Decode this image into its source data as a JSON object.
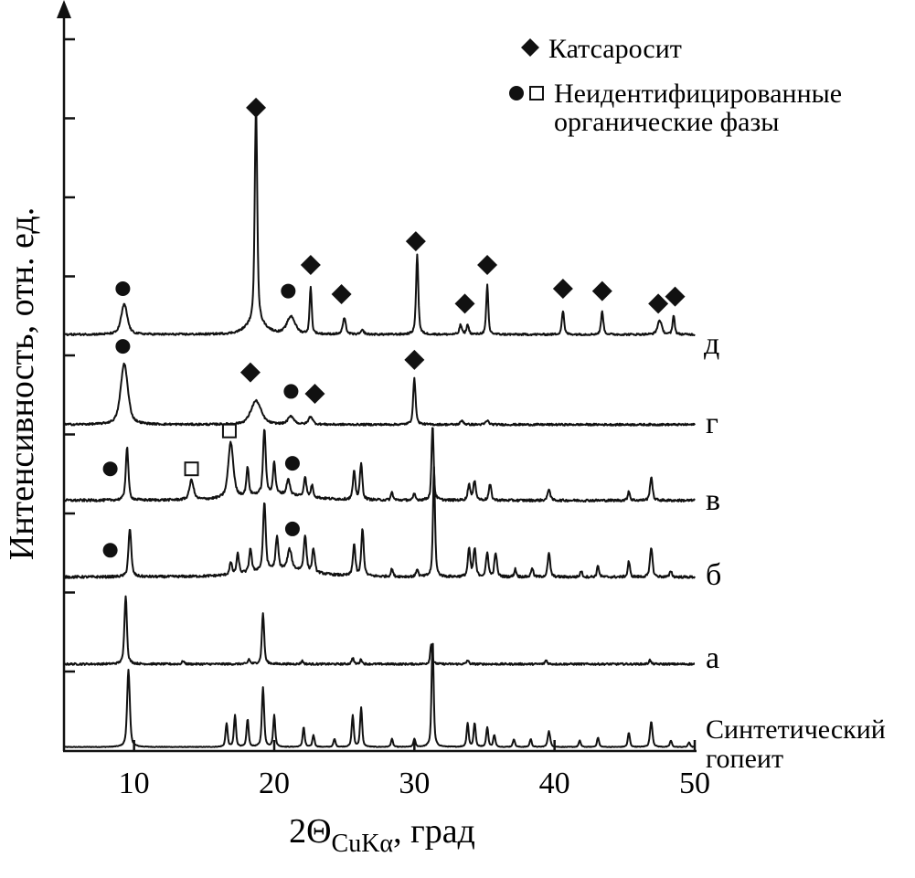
{
  "chart_data": {
    "type": "line",
    "title": "",
    "xlabel": "2Θ",
    "xlabel_sub": "CuKα",
    "xlabel_suffix": ", град",
    "ylabel": "Интенсивность, отн. ед.",
    "xlim": [
      5,
      50
    ],
    "ylim": [
      0,
      9.35
    ],
    "xticks": [
      10,
      20,
      30,
      40,
      50
    ],
    "yticks_unlabeled": [
      1,
      2,
      3,
      4,
      5,
      6,
      7,
      8,
      9
    ],
    "legend": {
      "placement": "top-right",
      "entries": [
        {
          "symbols": [
            "diamond"
          ],
          "label": "Катсаросит"
        },
        {
          "symbols": [
            "circle",
            "square"
          ],
          "label": "Неидентифицированные",
          "label2": "органические фазы"
        }
      ]
    },
    "series": [
      {
        "name": "Синтетический гопеит",
        "name_line1": "Синтетический",
        "name_line2": "гопеит",
        "baseline": 0.05,
        "noise": 0.004,
        "peaks": [
          [
            9.6,
            0.98,
            0.13
          ],
          [
            16.6,
            0.3,
            0.1
          ],
          [
            17.2,
            0.4,
            0.1
          ],
          [
            18.1,
            0.35,
            0.1
          ],
          [
            19.2,
            0.75,
            0.11
          ],
          [
            20.0,
            0.4,
            0.1
          ],
          [
            22.1,
            0.25,
            0.1
          ],
          [
            22.8,
            0.15,
            0.1
          ],
          [
            24.3,
            0.1,
            0.1
          ],
          [
            25.6,
            0.4,
            0.1
          ],
          [
            26.2,
            0.5,
            0.1
          ],
          [
            28.4,
            0.1,
            0.1
          ],
          [
            30.0,
            0.1,
            0.1
          ],
          [
            31.3,
            1.36,
            0.1
          ],
          [
            33.8,
            0.3,
            0.1
          ],
          [
            34.3,
            0.3,
            0.1
          ],
          [
            35.2,
            0.25,
            0.1
          ],
          [
            35.7,
            0.15,
            0.1
          ],
          [
            37.1,
            0.1,
            0.1
          ],
          [
            38.3,
            0.1,
            0.1
          ],
          [
            39.6,
            0.2,
            0.12
          ],
          [
            41.8,
            0.08,
            0.1
          ],
          [
            43.1,
            0.12,
            0.1
          ],
          [
            45.3,
            0.18,
            0.1
          ],
          [
            46.9,
            0.32,
            0.12
          ],
          [
            48.3,
            0.08,
            0.1
          ],
          [
            49.6,
            0.06,
            0.1
          ]
        ]
      },
      {
        "name": "а",
        "baseline": 1.1,
        "noise": 0.012,
        "peaks": [
          [
            9.4,
            0.87,
            0.12
          ],
          [
            13.5,
            0.04,
            0.1
          ],
          [
            18.2,
            0.06,
            0.1
          ],
          [
            19.2,
            0.65,
            0.11
          ],
          [
            22.0,
            0.04,
            0.1
          ],
          [
            25.6,
            0.08,
            0.1
          ],
          [
            26.2,
            0.06,
            0.1
          ],
          [
            31.2,
            0.25,
            0.1
          ],
          [
            33.8,
            0.05,
            0.1
          ],
          [
            39.4,
            0.05,
            0.1
          ],
          [
            46.8,
            0.05,
            0.1
          ]
        ]
      },
      {
        "name": "б",
        "baseline": 2.2,
        "noise": 0.015,
        "peaks": [
          [
            9.7,
            0.6,
            0.14
          ],
          [
            16.9,
            0.15,
            0.12
          ],
          [
            17.4,
            0.25,
            0.12
          ],
          [
            18.3,
            0.3,
            0.12
          ],
          [
            19.3,
            0.85,
            0.13
          ],
          [
            20.2,
            0.4,
            0.13
          ],
          [
            21.1,
            0.25,
            0.2
          ],
          [
            22.2,
            0.45,
            0.13
          ],
          [
            22.8,
            0.3,
            0.12
          ],
          [
            25.7,
            0.4,
            0.12
          ],
          [
            26.3,
            0.6,
            0.12
          ],
          [
            28.4,
            0.1,
            0.1
          ],
          [
            30.2,
            0.1,
            0.1
          ],
          [
            31.4,
            1.39,
            0.1
          ],
          [
            33.9,
            0.35,
            0.12
          ],
          [
            34.3,
            0.35,
            0.12
          ],
          [
            35.2,
            0.3,
            0.12
          ],
          [
            35.8,
            0.3,
            0.12
          ],
          [
            37.2,
            0.1,
            0.1
          ],
          [
            38.4,
            0.12,
            0.1
          ],
          [
            39.6,
            0.3,
            0.12
          ],
          [
            41.9,
            0.08,
            0.1
          ],
          [
            43.1,
            0.15,
            0.1
          ],
          [
            45.3,
            0.2,
            0.1
          ],
          [
            46.9,
            0.38,
            0.12
          ],
          [
            48.3,
            0.08,
            0.1
          ],
          [
            20.5,
            0.1,
            3.0
          ]
        ]
      },
      {
        "name": "в",
        "baseline": 3.17,
        "noise": 0.015,
        "peaks": [
          [
            9.5,
            0.67,
            0.13
          ],
          [
            14.1,
            0.25,
            0.2
          ],
          [
            16.9,
            0.7,
            0.25
          ],
          [
            18.1,
            0.35,
            0.12
          ],
          [
            19.3,
            0.82,
            0.13
          ],
          [
            20.0,
            0.4,
            0.12
          ],
          [
            21.0,
            0.2,
            0.15
          ],
          [
            22.2,
            0.25,
            0.12
          ],
          [
            22.7,
            0.15,
            0.12
          ],
          [
            25.7,
            0.35,
            0.12
          ],
          [
            26.2,
            0.45,
            0.12
          ],
          [
            28.4,
            0.1,
            0.1
          ],
          [
            30.0,
            0.08,
            0.1
          ],
          [
            31.3,
            0.96,
            0.1
          ],
          [
            33.9,
            0.2,
            0.12
          ],
          [
            34.3,
            0.25,
            0.12
          ],
          [
            35.4,
            0.2,
            0.12
          ],
          [
            39.6,
            0.15,
            0.12
          ],
          [
            45.3,
            0.12,
            0.1
          ],
          [
            46.9,
            0.3,
            0.12
          ],
          [
            20,
            0.08,
            3.0
          ]
        ]
      },
      {
        "name": "г",
        "baseline": 4.13,
        "noise": 0.012,
        "peaks": [
          [
            9.3,
            0.77,
            0.35
          ],
          [
            18.7,
            0.3,
            0.5
          ],
          [
            21.2,
            0.1,
            0.3
          ],
          [
            22.6,
            0.1,
            0.2
          ],
          [
            30.0,
            0.58,
            0.12
          ],
          [
            33.4,
            0.05,
            0.15
          ],
          [
            35.2,
            0.05,
            0.15
          ]
        ]
      },
      {
        "name": "д",
        "baseline": 5.27,
        "noise": 0.012,
        "peaks": [
          [
            9.3,
            0.38,
            0.3
          ],
          [
            18.7,
            2.75,
            0.12
          ],
          [
            18.7,
            0.15,
            0.9
          ],
          [
            21.2,
            0.22,
            0.4
          ],
          [
            22.6,
            0.6,
            0.1
          ],
          [
            25.0,
            0.2,
            0.15
          ],
          [
            26.3,
            0.05,
            0.15
          ],
          [
            30.2,
            1.02,
            0.11
          ],
          [
            33.3,
            0.12,
            0.12
          ],
          [
            33.8,
            0.12,
            0.12
          ],
          [
            35.2,
            0.62,
            0.1
          ],
          [
            40.6,
            0.3,
            0.11
          ],
          [
            43.4,
            0.3,
            0.11
          ],
          [
            47.5,
            0.18,
            0.2
          ],
          [
            48.5,
            0.25,
            0.1
          ]
        ]
      }
    ],
    "markers": [
      {
        "series": "д",
        "type": "circle",
        "x": 9.2,
        "y": 5.85
      },
      {
        "series": "д",
        "type": "diamond",
        "x": 18.7,
        "y": 8.14
      },
      {
        "series": "д",
        "type": "circle",
        "x": 21.0,
        "y": 5.82
      },
      {
        "series": "д",
        "type": "diamond",
        "x": 22.6,
        "y": 6.15
      },
      {
        "series": "д",
        "type": "diamond",
        "x": 24.8,
        "y": 5.78
      },
      {
        "series": "д",
        "type": "diamond",
        "x": 30.1,
        "y": 6.45
      },
      {
        "series": "д",
        "type": "diamond",
        "x": 33.6,
        "y": 5.66
      },
      {
        "series": "д",
        "type": "diamond",
        "x": 35.2,
        "y": 6.15
      },
      {
        "series": "д",
        "type": "diamond",
        "x": 40.6,
        "y": 5.85
      },
      {
        "series": "д",
        "type": "diamond",
        "x": 43.4,
        "y": 5.82
      },
      {
        "series": "д",
        "type": "diamond",
        "x": 47.4,
        "y": 5.66
      },
      {
        "series": "д",
        "type": "diamond",
        "x": 48.6,
        "y": 5.75
      },
      {
        "series": "г",
        "type": "circle",
        "x": 9.2,
        "y": 5.12
      },
      {
        "series": "г",
        "type": "diamond",
        "x": 18.3,
        "y": 4.79
      },
      {
        "series": "г",
        "type": "circle",
        "x": 21.2,
        "y": 4.55
      },
      {
        "series": "г",
        "type": "diamond",
        "x": 22.9,
        "y": 4.52
      },
      {
        "series": "г",
        "type": "diamond",
        "x": 30.0,
        "y": 4.95
      },
      {
        "series": "в",
        "type": "circle",
        "x": 8.3,
        "y": 3.57
      },
      {
        "series": "в",
        "type": "square",
        "x": 14.1,
        "y": 3.57
      },
      {
        "series": "в",
        "type": "square",
        "x": 16.8,
        "y": 4.05
      },
      {
        "series": "в",
        "type": "circle",
        "x": 21.3,
        "y": 3.64
      },
      {
        "series": "б",
        "type": "circle",
        "x": 8.3,
        "y": 2.54
      },
      {
        "series": "б",
        "type": "circle",
        "x": 21.3,
        "y": 2.81
      }
    ],
    "colors": {
      "line": "#111111",
      "background": "#ffffff"
    }
  }
}
